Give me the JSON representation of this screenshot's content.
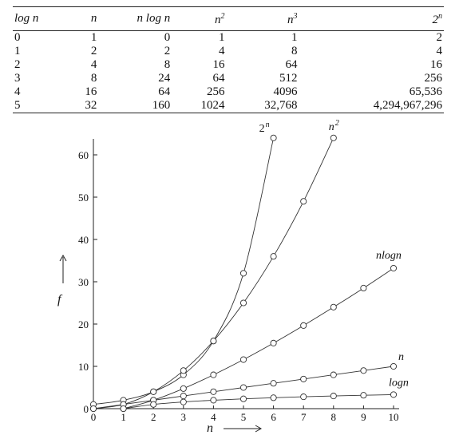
{
  "table": {
    "headers": [
      {
        "base": "log n",
        "sup": ""
      },
      {
        "base": "n",
        "sup": ""
      },
      {
        "base": "n log n",
        "sup": ""
      },
      {
        "base": "n",
        "sup": "2"
      },
      {
        "base": "n",
        "sup": "3"
      },
      {
        "base": "2",
        "sup": "n"
      }
    ],
    "rows": [
      [
        "0",
        "1",
        "0",
        "1",
        "1",
        "2"
      ],
      [
        "1",
        "2",
        "2",
        "4",
        "8",
        "4"
      ],
      [
        "2",
        "4",
        "8",
        "16",
        "64",
        "16"
      ],
      [
        "3",
        "8",
        "24",
        "64",
        "512",
        "256"
      ],
      [
        "4",
        "16",
        "64",
        "256",
        "4096",
        "65,536"
      ],
      [
        "5",
        "32",
        "160",
        "1024",
        "32,768",
        "4,294,967,296"
      ]
    ]
  },
  "chart_data": {
    "type": "line",
    "xlabel": "n",
    "ylabel": "f",
    "xlim": [
      0,
      10
    ],
    "ylim": [
      0,
      65
    ],
    "xticks": [
      "0",
      "1",
      "2",
      "3",
      "4",
      "5",
      "6",
      "7",
      "8",
      "9",
      "10"
    ],
    "yticks": [
      "0",
      "10",
      "20",
      "30",
      "40",
      "50",
      "60"
    ],
    "grid": false,
    "series": [
      {
        "name": "2^n",
        "label": {
          "base": "2",
          "sup": "n"
        },
        "x": [
          0,
          1,
          2,
          3,
          4,
          5,
          6
        ],
        "y": [
          1,
          2,
          4,
          8,
          16,
          32,
          64
        ]
      },
      {
        "name": "n^2",
        "label": {
          "base": "n",
          "sup": "2"
        },
        "x": [
          0,
          1,
          2,
          3,
          4,
          5,
          6,
          7,
          8
        ],
        "y": [
          0,
          1,
          4,
          9,
          16,
          25,
          36,
          49,
          64
        ]
      },
      {
        "name": "nlogn",
        "label": {
          "base": "nlogn",
          "sup": ""
        },
        "x": [
          1,
          2,
          3,
          4,
          5,
          6,
          7,
          8,
          9,
          10
        ],
        "y": [
          0,
          2,
          4.75,
          8,
          11.6,
          15.5,
          19.65,
          24,
          28.5,
          33.2
        ]
      },
      {
        "name": "n",
        "label": {
          "base": "n",
          "sup": ""
        },
        "x": [
          0,
          1,
          2,
          3,
          4,
          5,
          6,
          7,
          8,
          9,
          10
        ],
        "y": [
          0,
          1,
          2,
          3,
          4,
          5,
          6,
          7,
          8,
          9,
          10
        ]
      },
      {
        "name": "logn",
        "label": {
          "base": "logn",
          "sup": ""
        },
        "x": [
          1,
          2,
          3,
          4,
          5,
          6,
          7,
          8,
          9,
          10
        ],
        "y": [
          0,
          1,
          1.58,
          2,
          2.32,
          2.58,
          2.81,
          3,
          3.17,
          3.32
        ]
      }
    ]
  }
}
